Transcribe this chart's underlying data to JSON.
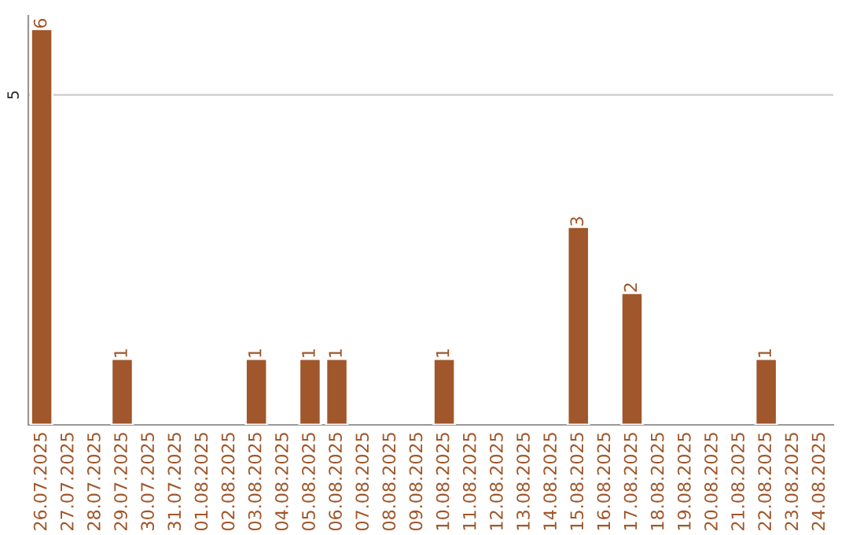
{
  "chart_data": {
    "type": "bar",
    "categories": [
      "26.07.2025",
      "27.07.2025",
      "28.07.2025",
      "29.07.2025",
      "30.07.2025",
      "31.07.2025",
      "01.08.2025",
      "02.08.2025",
      "03.08.2025",
      "04.08.2025",
      "05.08.2025",
      "06.08.2025",
      "07.08.2025",
      "08.08.2025",
      "09.08.2025",
      "10.08.2025",
      "11.08.2025",
      "12.08.2025",
      "13.08.2025",
      "14.08.2025",
      "15.08.2025",
      "16.08.2025",
      "17.08.2025",
      "18.08.2025",
      "19.08.2025",
      "20.08.2025",
      "21.08.2025",
      "22.08.2025",
      "23.08.2025",
      "24.08.2025"
    ],
    "values": [
      6,
      null,
      null,
      1,
      null,
      null,
      null,
      null,
      1,
      null,
      1,
      1,
      null,
      null,
      null,
      1,
      null,
      null,
      null,
      null,
      3,
      null,
      2,
      null,
      null,
      null,
      null,
      1,
      null,
      null
    ],
    "data_labels": true,
    "color": "#a0572b",
    "ylim": [
      0,
      6.2
    ],
    "yticks": [
      5
    ],
    "grid": "y"
  }
}
